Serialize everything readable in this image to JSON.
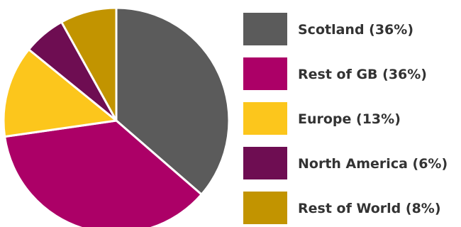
{
  "chart_data": {
    "type": "pie",
    "title": "",
    "slices": [
      {
        "label": "Scotland",
        "value": 36,
        "legend": "Scotland (36%)",
        "color": "#5b5b5b"
      },
      {
        "label": "Rest of GB",
        "value": 36,
        "legend": "Rest of GB (36%)",
        "color": "#ac0067"
      },
      {
        "label": "Europe",
        "value": 13,
        "legend": "Europe (13%)",
        "color": "#fcc61c"
      },
      {
        "label": "North America",
        "value": 6,
        "legend": "North America (6%)",
        "color": "#6e0d52"
      },
      {
        "label": "Rest of World",
        "value": 8,
        "legend": "Rest of World (8%)",
        "color": "#c29400"
      }
    ],
    "legend_position": "right",
    "slice_border_color": "#ffffff"
  }
}
